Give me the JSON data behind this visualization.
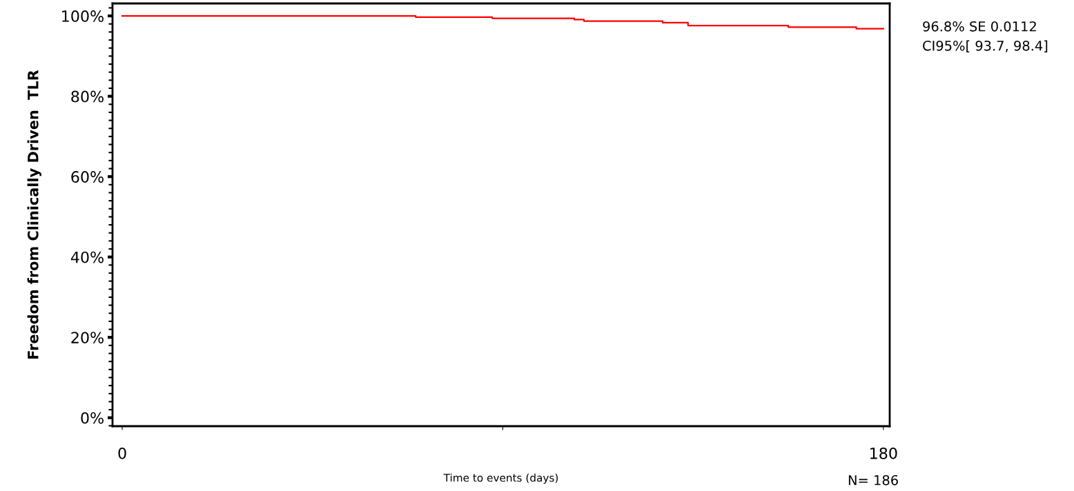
{
  "chart_data": {
    "type": "step",
    "xlabel": "Time to events (days)",
    "ylabel": "Freedom from Clinically Driven  TLR",
    "x": [
      0,
      69.4,
      87.5,
      106.9,
      109.2,
      127.8,
      133.8,
      157.5,
      173.6,
      180
    ],
    "series": [
      {
        "color": "#ff0000",
        "values": [
          100,
          99.7,
          99.4,
          99.1,
          98.7,
          98.3,
          97.6,
          97.2,
          96.8,
          96.8
        ]
      }
    ],
    "xlim": [
      -2.3,
      181.5
    ],
    "ylim": [
      -2.1,
      103.1
    ],
    "xticks": [
      0,
      {
        "value": 90,
        "label": null
      },
      180
    ],
    "yticks": [
      {
        "value": 0,
        "label": "0%"
      },
      {
        "value": 20,
        "label": "20%"
      },
      {
        "value": 40,
        "label": "40%"
      },
      {
        "value": 60,
        "label": "60%"
      },
      {
        "value": 80,
        "label": "80%"
      },
      {
        "value": 100,
        "label": "100%"
      }
    ],
    "grid": false,
    "legend": false,
    "annotations": [
      "96.8% SE 0.0112",
      "CI95%[ 93.7, 98.4]",
      "N= 186"
    ]
  }
}
